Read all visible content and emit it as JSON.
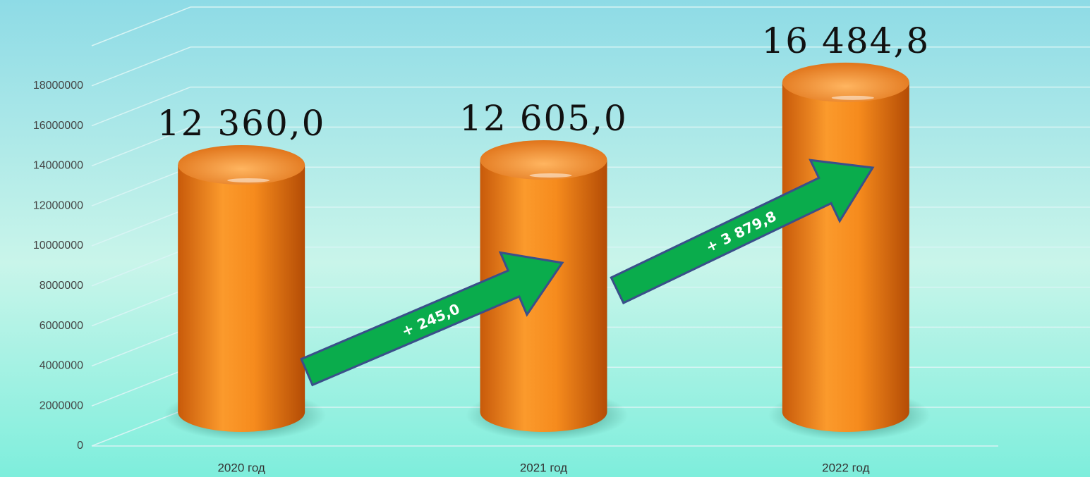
{
  "chart_data": {
    "type": "cylinder",
    "categories": [
      "2020 год",
      "2021 год",
      "2022 год"
    ],
    "values": [
      12360000,
      12605000,
      16484800
    ],
    "value_labels": [
      "12 360,0",
      "12 605,0",
      "16 484,8"
    ],
    "color": "#f7921e",
    "ylim": [
      0,
      20000000
    ],
    "yticks": [
      0,
      2000000,
      4000000,
      6000000,
      8000000,
      10000000,
      12000000,
      14000000,
      16000000,
      18000000
    ],
    "grid": true,
    "annotations": [
      "+ 245,0",
      "+ 3 879,8"
    ]
  }
}
